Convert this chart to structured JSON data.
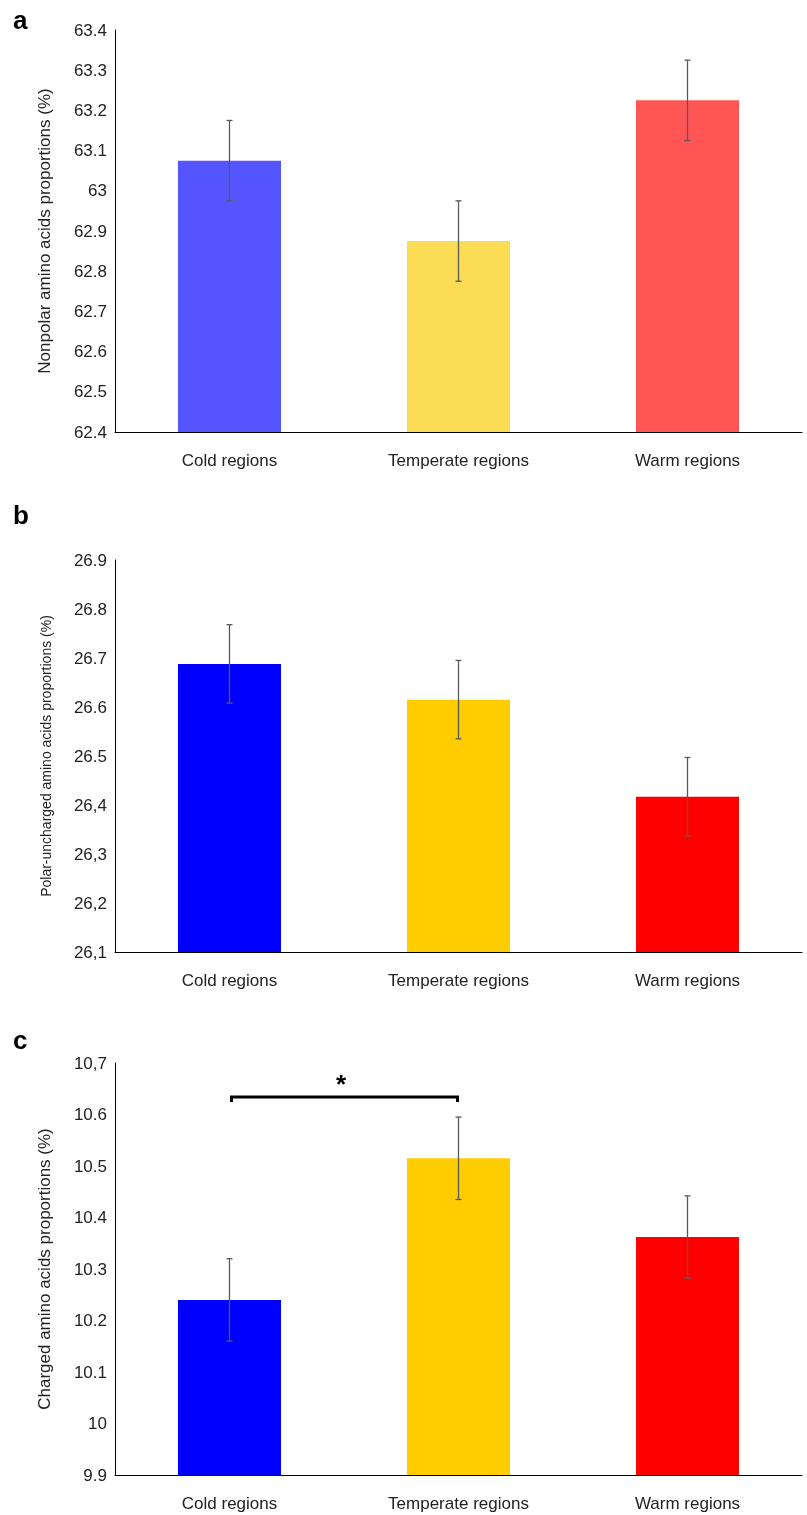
{
  "chart_data": [
    {
      "type": "bar",
      "title": "a",
      "ylabel": "Nonpolar amino acids proportions (%)",
      "categories": [
        "Cold regions",
        "Temperate regions",
        "Warm regions"
      ],
      "values": [
        63.075,
        62.875,
        63.225
      ],
      "colors": [
        "#5555ff",
        "#fcdb55",
        "#ff5555"
      ],
      "errors": [
        0.1,
        0.1,
        0.1
      ],
      "ylim": [
        62.4,
        63.4
      ],
      "yticks": [
        62.4,
        62.5,
        62.6,
        62.7,
        62.8,
        62.9,
        63,
        63.1,
        63.2,
        63.3,
        63.4
      ],
      "grid": false
    },
    {
      "type": "bar",
      "title": "b",
      "ylabel": "Polar-uncharged amino acids proportions (%)",
      "categories": [
        "Cold regions",
        "Temperate regions",
        "Warm regions"
      ],
      "values": [
        26.688,
        26.615,
        26.417
      ],
      "colors": [
        "#0000ff",
        "#ffcc00",
        "#ff0000"
      ],
      "errors": [
        0.08,
        0.08,
        0.08
      ],
      "ylim": [
        26.1,
        26.9
      ],
      "yticks": [
        {
          "value": 26.1,
          "label": "26,1"
        },
        {
          "value": 26.2,
          "label": "26,2"
        },
        {
          "value": 26.3,
          "label": "26,3"
        },
        {
          "value": 26.4,
          "label": "26,4"
        },
        {
          "value": 26.5,
          "label": "26.5"
        },
        {
          "value": 26.6,
          "label": "26.6"
        },
        {
          "value": 26.7,
          "label": "26.7"
        },
        {
          "value": 26.8,
          "label": "26.8"
        },
        {
          "value": 26.9,
          "label": "26.9"
        }
      ],
      "grid": false
    },
    {
      "type": "bar",
      "title": "c",
      "ylabel": "Charged amino acids proportions (%)",
      "categories": [
        "Cold regions",
        "Temperate regions",
        "Warm regions"
      ],
      "values": [
        10.24,
        10.515,
        10.362
      ],
      "colors": [
        "#0000ff",
        "#ffcc00",
        "#ff0000"
      ],
      "errors": [
        0.08,
        0.08,
        0.08
      ],
      "ylim": [
        9.9,
        10.7
      ],
      "yticks": [
        9.9,
        10,
        10.1,
        10.2,
        10.3,
        10.4,
        10.5,
        10.6,
        {
          "value": 10.7,
          "label": "10,7"
        }
      ],
      "grid": false,
      "annotations": [
        "*"
      ]
    }
  ]
}
